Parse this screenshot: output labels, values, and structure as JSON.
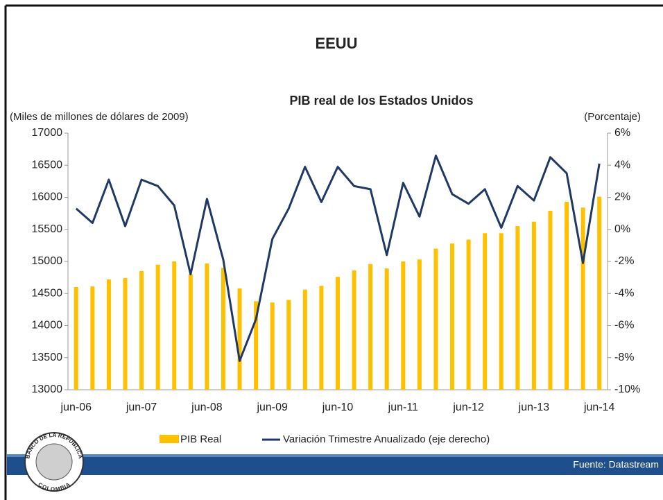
{
  "slide": {
    "heading": "EEUU",
    "source": "Fuente: Datastream",
    "logo": {
      "top": "BANCO DE LA REPUBLICA",
      "bottom": "COLOMBIA"
    }
  },
  "chart_data": {
    "type": "bar",
    "title": "PIB real de los Estados Unidos",
    "y_label": "(Miles de millones de dólares de 2009)",
    "y2_label": "(Porcentaje)",
    "categories": [
      "jun-06",
      null,
      null,
      null,
      "jun-07",
      null,
      null,
      null,
      "jun-08",
      null,
      null,
      null,
      "jun-09",
      null,
      null,
      null,
      "jun-10",
      null,
      null,
      null,
      "jun-11",
      null,
      null,
      null,
      "jun-12",
      null,
      null,
      null,
      "jun-13",
      null,
      null,
      null,
      "jun-14"
    ],
    "series": [
      {
        "name": "PIB Real",
        "type": "bar",
        "color": "#ffc000",
        "values": [
          14600,
          14610,
          14720,
          14740,
          14850,
          14950,
          15000,
          14800,
          14970,
          14900,
          14580,
          14380,
          14360,
          14400,
          14560,
          14620,
          14760,
          14860,
          14960,
          14890,
          15000,
          15030,
          15200,
          15280,
          15340,
          15440,
          15440,
          15550,
          15620,
          15790,
          15930,
          15840,
          16010
        ]
      },
      {
        "name": "Variación Trimestre Anualizado (eje derecho)",
        "type": "line",
        "axis": "y2",
        "color": "#1f3864",
        "values": [
          1.3,
          0.4,
          3.1,
          0.2,
          3.1,
          2.7,
          1.5,
          -2.8,
          1.9,
          -1.9,
          -8.2,
          -5.6,
          -0.6,
          1.3,
          3.9,
          1.7,
          3.9,
          2.7,
          2.5,
          -1.6,
          2.9,
          0.8,
          4.6,
          2.2,
          1.6,
          2.5,
          0.1,
          2.7,
          1.8,
          4.5,
          3.5,
          -2.1,
          4.1
        ]
      }
    ],
    "ylim": [
      13000,
      17000
    ],
    "yticks": [
      13000,
      13500,
      14000,
      14500,
      15000,
      15500,
      16000,
      16500,
      17000
    ],
    "y2lim": [
      -10,
      6
    ],
    "y2ticks": [
      {
        "value": -10,
        "label": "-10%"
      },
      {
        "value": -8,
        "label": "-8%"
      },
      {
        "value": -6,
        "label": "-6%"
      },
      {
        "value": -4,
        "label": "-4%"
      },
      {
        "value": -2,
        "label": "-2%"
      },
      {
        "value": 0,
        "label": "0%"
      },
      {
        "value": 2,
        "label": "2%"
      },
      {
        "value": 4,
        "label": "4%"
      },
      {
        "value": 6,
        "label": "6%"
      }
    ],
    "grid": false,
    "legend": "bottom"
  }
}
